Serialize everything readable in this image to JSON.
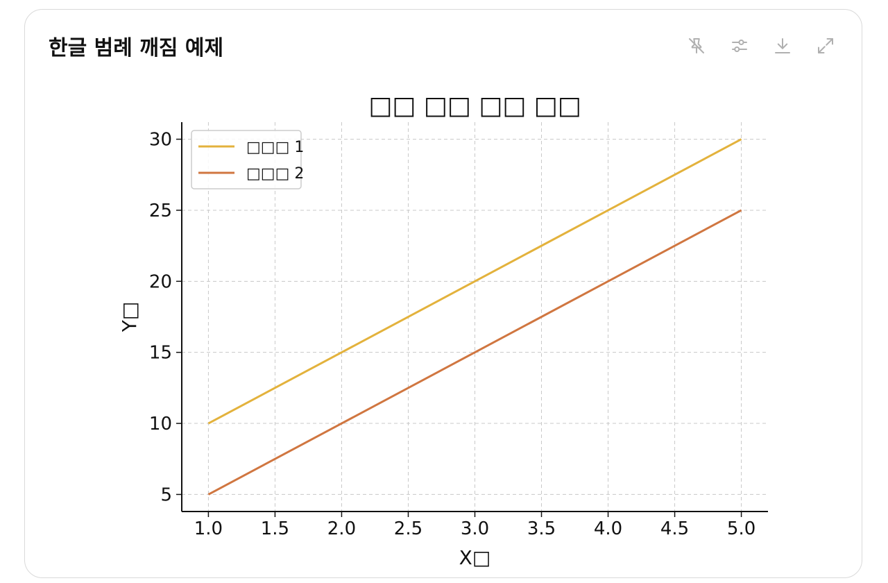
{
  "card": {
    "title": "한글 범례 깨짐 예제"
  },
  "toolbar": {
    "icons": [
      "pin-off-icon",
      "sliders-icon",
      "download-icon",
      "expand-icon"
    ]
  },
  "colors": {
    "series1": "#E3B23C",
    "series2": "#D07640",
    "grid": "#c8c8c8",
    "icon": "#b0b0b0"
  },
  "chart_data": {
    "type": "line",
    "title": "□□ □□ □□ □□",
    "xlabel": "X□",
    "ylabel": "Y□",
    "xlim": [
      0.8,
      5.2
    ],
    "ylim": [
      3.8,
      31.2
    ],
    "xticks": [
      1.0,
      1.5,
      2.0,
      2.5,
      3.0,
      3.5,
      4.0,
      4.5,
      5.0
    ],
    "yticks": [
      5,
      10,
      15,
      20,
      25,
      30
    ],
    "grid": true,
    "legend_position": "top-left",
    "series": [
      {
        "name": "□□□ 1",
        "x": [
          1,
          2,
          3,
          4,
          5
        ],
        "values": [
          10,
          15,
          20,
          25,
          30
        ]
      },
      {
        "name": "□□□ 2",
        "x": [
          1,
          2,
          3,
          4,
          5
        ],
        "values": [
          5,
          10,
          15,
          20,
          25
        ]
      }
    ]
  }
}
